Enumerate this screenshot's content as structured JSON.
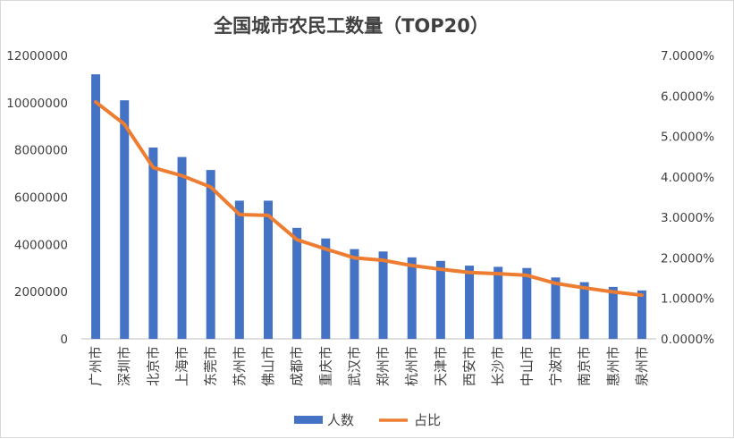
{
  "chart_data": {
    "type": "bar",
    "title": "全国城市农民工数量（TOP20）",
    "xlabel": "",
    "ylabel": "",
    "categories": [
      "广州市",
      "深圳市",
      "北京市",
      "上海市",
      "东莞市",
      "苏州市",
      "佛山市",
      "成都市",
      "重庆市",
      "武汉市",
      "郑州市",
      "杭州市",
      "天津市",
      "西安市",
      "长沙市",
      "中山市",
      "宁波市",
      "南京市",
      "惠州市",
      "泉州市"
    ],
    "series": [
      {
        "name": "人数",
        "type": "bar",
        "axis": "left",
        "color": "#4472c4",
        "values": [
          11200000,
          10100000,
          8100000,
          7700000,
          7150000,
          5850000,
          5850000,
          4700000,
          4250000,
          3800000,
          3700000,
          3450000,
          3300000,
          3100000,
          3050000,
          3000000,
          2600000,
          2400000,
          2200000,
          2050000
        ]
      },
      {
        "name": "占比",
        "type": "line",
        "axis": "right",
        "color": "#ed7d31",
        "values": [
          0.0585,
          0.053,
          0.0423,
          0.0403,
          0.0375,
          0.0307,
          0.0305,
          0.0245,
          0.0222,
          0.02,
          0.0194,
          0.0181,
          0.0172,
          0.0164,
          0.0161,
          0.0157,
          0.0137,
          0.0126,
          0.0116,
          0.0108
        ]
      }
    ],
    "y_left": {
      "ylim": [
        0,
        12000000
      ],
      "ticks": [
        0,
        2000000,
        4000000,
        6000000,
        8000000,
        10000000,
        12000000
      ],
      "tick_labels": [
        "0",
        "2000000",
        "4000000",
        "6000000",
        "8000000",
        "10000000",
        "12000000"
      ]
    },
    "y_right": {
      "ylim": [
        0,
        0.07
      ],
      "ticks": [
        0,
        0.01,
        0.02,
        0.03,
        0.04,
        0.05,
        0.06,
        0.07
      ],
      "tick_labels": [
        "0.0000%",
        "1.0000%",
        "2.0000%",
        "3.0000%",
        "4.0000%",
        "5.0000%",
        "6.0000%",
        "7.0000%"
      ]
    },
    "grid": false,
    "legend_position": "bottom"
  }
}
